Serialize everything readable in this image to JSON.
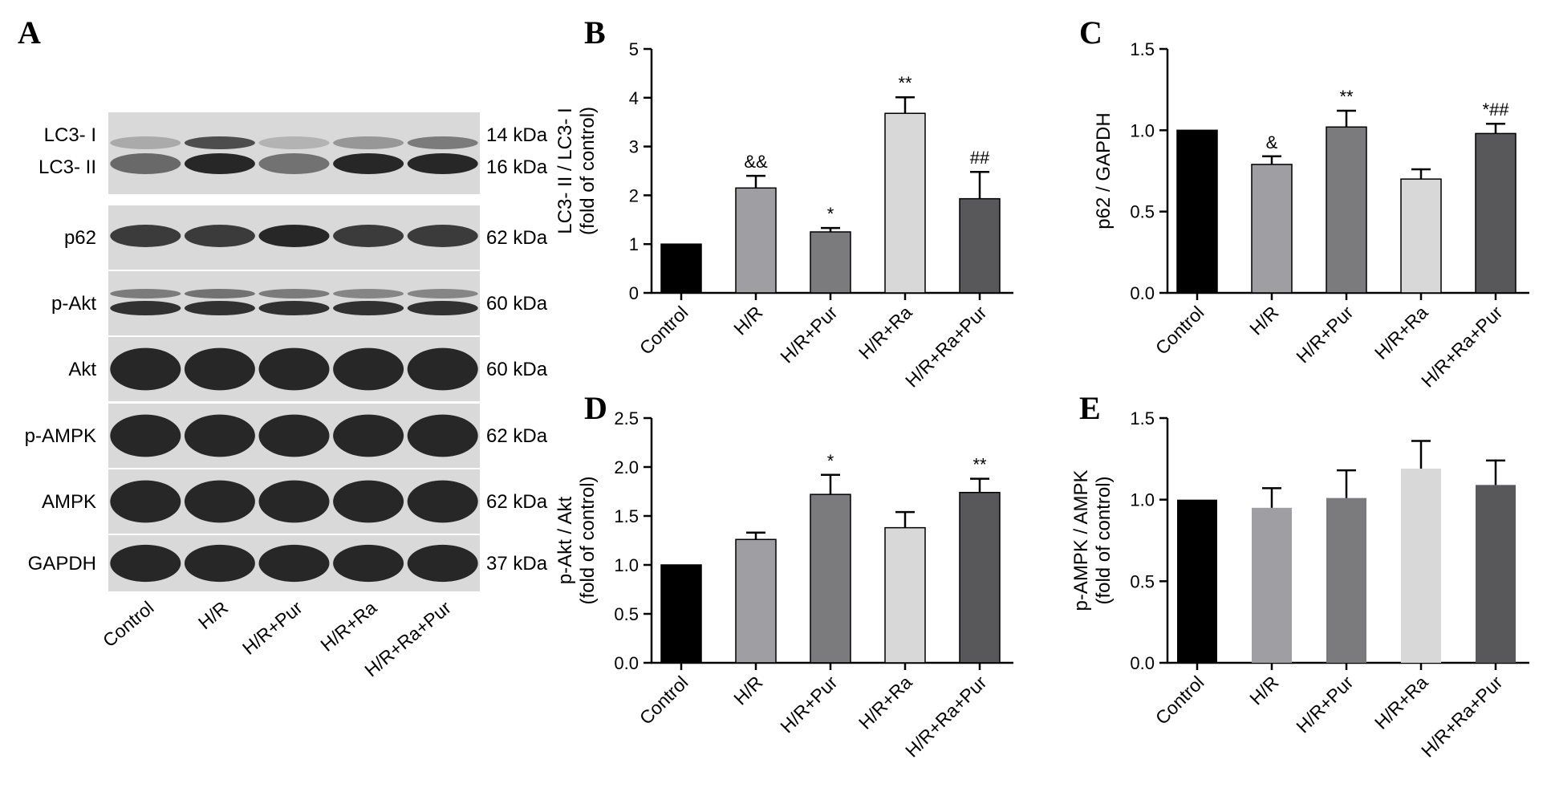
{
  "panel_letters": [
    "A",
    "B",
    "C",
    "D",
    "E"
  ],
  "blot": {
    "lanes": [
      "Control",
      "H/R",
      "H/R+Pur",
      "H/R+Ra",
      "H/R+Ra+Pur"
    ],
    "rows": [
      {
        "labels": [
          "LC3- I",
          "LC3- II"
        ],
        "kda": [
          "14 kDa",
          "16 kDa"
        ]
      },
      {
        "labels": [
          "p62"
        ],
        "kda": [
          "62 kDa"
        ]
      },
      {
        "labels": [
          "p-Akt"
        ],
        "kda": [
          "60 kDa"
        ]
      },
      {
        "labels": [
          "Akt"
        ],
        "kda": [
          "60 kDa"
        ]
      },
      {
        "labels": [
          "p-AMPK"
        ],
        "kda": [
          "62 kDa"
        ]
      },
      {
        "labels": [
          "AMPK"
        ],
        "kda": [
          "62 kDa"
        ]
      },
      {
        "labels": [
          "GAPDH"
        ],
        "kda": [
          "37 kDa"
        ]
      }
    ]
  },
  "colors": {
    "bars": [
      "#000000",
      "#9e9ea3",
      "#7b7b7e",
      "#d8d8d8",
      "#58585a"
    ],
    "blot_bg": "#d9d9d9",
    "band": "#1e1e1e"
  },
  "chart_data": [
    {
      "type": "bar",
      "panel": "B",
      "categories": [
        "Control",
        "H/R",
        "H/R+Pur",
        "H/R+Ra",
        "H/R+Ra+Pur"
      ],
      "values": [
        1.0,
        2.15,
        1.25,
        3.68,
        1.93
      ],
      "errors": [
        0,
        0.25,
        0.08,
        0.33,
        0.55
      ],
      "annotations": [
        "",
        "&&",
        "*",
        "**",
        "##"
      ],
      "ylabel": [
        "LC3- II / LC3- I",
        "(fold of control)"
      ],
      "ylim": [
        0,
        5
      ],
      "yticks": [
        "0",
        "1",
        "2",
        "3",
        "4",
        "5"
      ],
      "outlined": true
    },
    {
      "type": "bar",
      "panel": "C",
      "categories": [
        "Control",
        "H/R",
        "H/R+Pur",
        "H/R+Ra",
        "H/R+Ra+Pur"
      ],
      "values": [
        1.0,
        0.79,
        1.02,
        0.7,
        0.98
      ],
      "errors": [
        0,
        0.05,
        0.1,
        0.06,
        0.06
      ],
      "annotations": [
        "",
        "&",
        "**",
        "",
        "*##"
      ],
      "ylabel": [
        "p62 / GAPDH"
      ],
      "ylim": [
        0,
        1.5
      ],
      "yticks": [
        "0.0",
        "0.5",
        "1.0",
        "1.5"
      ],
      "outlined": true
    },
    {
      "type": "bar",
      "panel": "D",
      "categories": [
        "Control",
        "H/R",
        "H/R+Pur",
        "H/R+Ra",
        "H/R+Ra+Pur"
      ],
      "values": [
        1.0,
        1.26,
        1.72,
        1.38,
        1.74
      ],
      "errors": [
        0,
        0.07,
        0.2,
        0.16,
        0.14
      ],
      "annotations": [
        "",
        "",
        "*",
        "",
        "**"
      ],
      "ylabel": [
        "p-Akt / Akt",
        "(fold of control)"
      ],
      "ylim": [
        0,
        2.5
      ],
      "yticks": [
        "0.0",
        "0.5",
        "1.0",
        "1.5",
        "2.0",
        "2.5"
      ],
      "outlined": true
    },
    {
      "type": "bar",
      "panel": "E",
      "categories": [
        "Control",
        "H/R",
        "H/R+Pur",
        "H/R+Ra",
        "H/R+Ra+Pur"
      ],
      "values": [
        1.0,
        0.95,
        1.01,
        1.19,
        1.09
      ],
      "errors": [
        0,
        0.12,
        0.17,
        0.17,
        0.15
      ],
      "annotations": [
        "",
        "",
        "",
        "",
        ""
      ],
      "ylabel": [
        "p-AMPK / AMPK",
        "(fold of control)"
      ],
      "ylim": [
        0,
        1.5
      ],
      "yticks": [
        "0.0",
        "0.5",
        "1.0",
        "1.5"
      ],
      "outlined": false
    }
  ]
}
